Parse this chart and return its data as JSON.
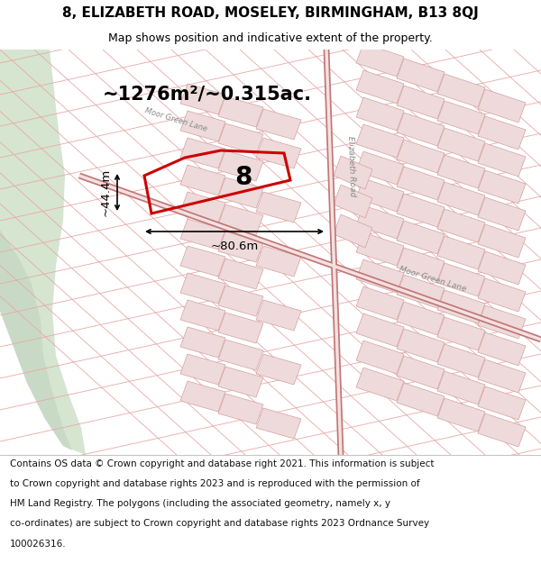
{
  "title_line1": "8, ELIZABETH ROAD, MOSELEY, BIRMINGHAM, B13 8QJ",
  "title_line2": "Map shows position and indicative extent of the property.",
  "footer_lines": [
    "Contains OS data © Crown copyright and database right 2021. This information is subject",
    "to Crown copyright and database rights 2023 and is reproduced with the permission of",
    "HM Land Registry. The polygons (including the associated geometry, namely x, y",
    "co-ordinates) are subject to Crown copyright and database rights 2023 Ordnance Survey",
    "100026316."
  ],
  "area_label": "~1276m²/~0.315ac.",
  "width_label": "~80.6m",
  "height_label": "~44.4m",
  "property_number": "8",
  "map_bg": "#f8f2f2",
  "park_color": "#d5e5d0",
  "road_color": "#e8a8a8",
  "building_fill": "#eedada",
  "building_edge": "#d4a0a0",
  "property_edge": "#cc0000",
  "title_fontsize": 11,
  "subtitle_fontsize": 9,
  "footer_fontsize": 7.5,
  "area_fontsize": 15,
  "dim_fontsize": 9.5
}
